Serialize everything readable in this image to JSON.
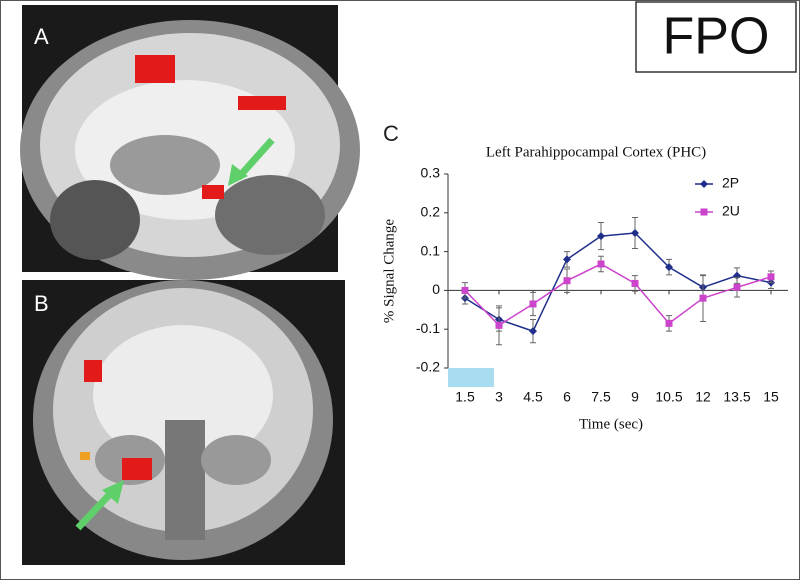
{
  "labels": {
    "fpo": "FPO",
    "panel_a": "A",
    "panel_b": "B",
    "panel_c": "C"
  },
  "chart_data": {
    "type": "line",
    "title": "Left Parahippocampal Cortex (PHC)",
    "x_label": "Time (sec)",
    "y_label": "% Signal Change",
    "x": [
      1.5,
      3,
      4.5,
      6,
      7.5,
      9,
      10.5,
      12,
      13.5,
      15
    ],
    "xlim": [
      0.75,
      15.75
    ],
    "xticks": [
      1.5,
      3,
      4.5,
      6,
      7.5,
      9,
      10.5,
      12,
      13.5,
      15
    ],
    "ylim": [
      -0.2,
      0.3
    ],
    "yticks": [
      0.3,
      0.2,
      0.1,
      0,
      -0.1,
      -0.2
    ],
    "legend": "upper right",
    "series": [
      {
        "name": "2P",
        "color": "#1f2f8a",
        "marker": "diamond",
        "values": [
          -0.02,
          -0.075,
          -0.105,
          0.08,
          0.14,
          0.148,
          0.06,
          0.008,
          0.038,
          0.02
        ],
        "errors": [
          0.015,
          0.03,
          0.03,
          0.02,
          0.035,
          0.04,
          0.02,
          0.03,
          0.02,
          0.015
        ]
      },
      {
        "name": "2U",
        "color": "#cc44cc",
        "marker": "square",
        "values": [
          0,
          -0.09,
          -0.035,
          0.025,
          0.068,
          0.018,
          -0.085,
          -0.02,
          0.008,
          0.035
        ],
        "errors": [
          0.02,
          0.05,
          0.03,
          0.03,
          0.02,
          0.02,
          0.02,
          0.06,
          0.025,
          0.015
        ]
      }
    ]
  }
}
